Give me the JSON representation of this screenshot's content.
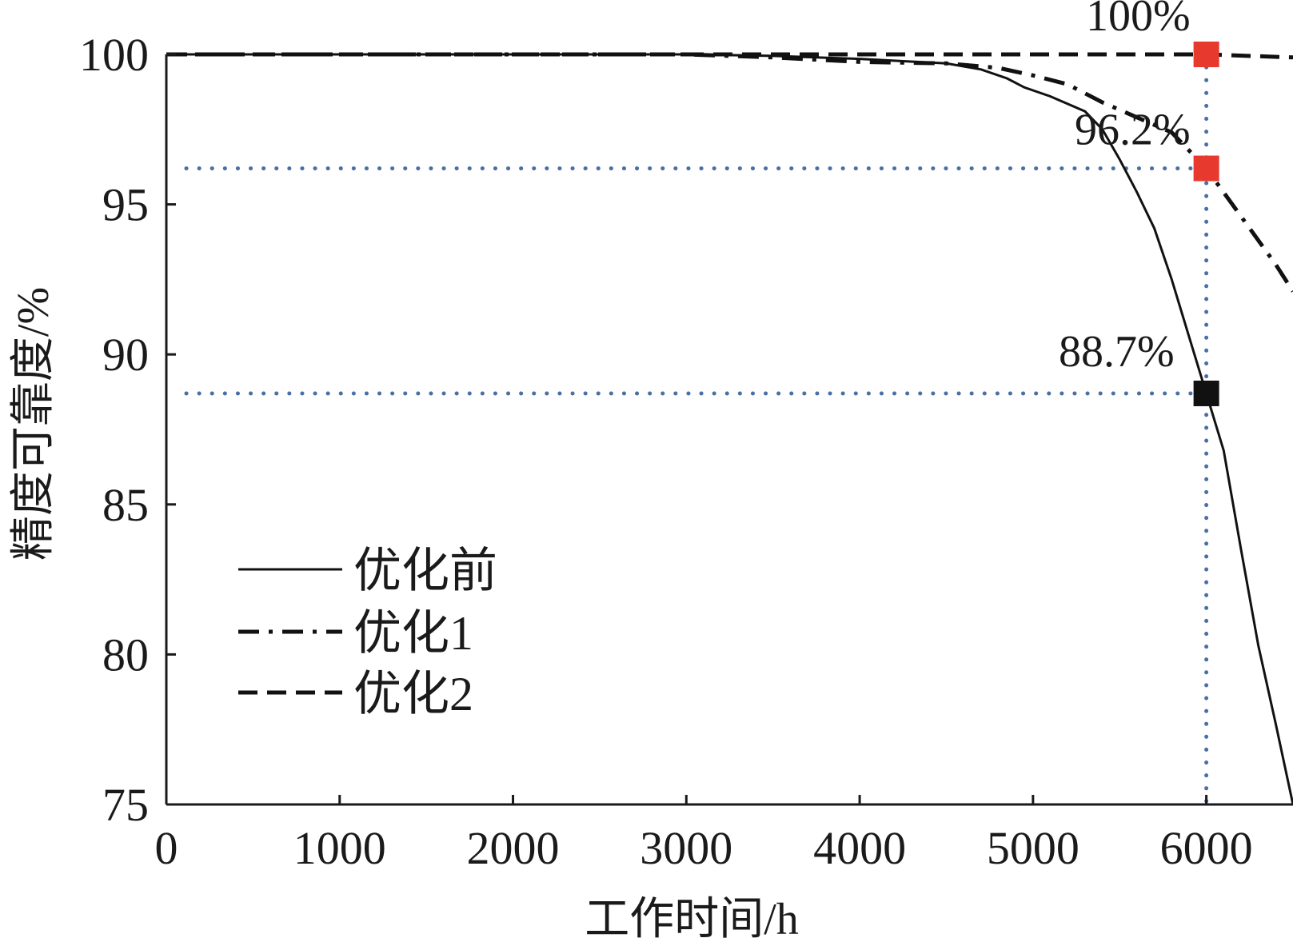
{
  "chart_data": {
    "type": "line",
    "xlabel": "工作时间/h",
    "ylabel": "精度可靠度/%",
    "xlim": [
      0,
      6500
    ],
    "ylim": [
      75,
      100
    ],
    "xticks": [
      0,
      1000,
      2000,
      3000,
      4000,
      5000,
      6000
    ],
    "yticks": [
      75,
      80,
      85,
      90,
      95,
      100
    ],
    "legend_position": "lower-left",
    "series": [
      {
        "name": "优化前",
        "style": "solid",
        "x": [
          0,
          3000,
          3500,
          4000,
          4500,
          4700,
          4850,
          4950,
          5000,
          5100,
          5300,
          5400,
          5500,
          5600,
          5700,
          5800,
          5900,
          6000,
          6100,
          6200,
          6300,
          6400,
          6500
        ],
        "y": [
          100,
          100,
          99.95,
          99.85,
          99.7,
          99.5,
          99.2,
          98.9,
          98.8,
          98.6,
          98.1,
          97.5,
          96.5,
          95.4,
          94.2,
          92.5,
          90.6,
          88.7,
          86.8,
          83.5,
          80.3,
          77.7,
          75
        ]
      },
      {
        "name": "优化1",
        "style": "dashdot",
        "x": [
          0,
          3000,
          3500,
          4000,
          4500,
          4800,
          5000,
          5200,
          5400,
          5600,
          5800,
          6000,
          6200,
          6400,
          6500
        ],
        "y": [
          100,
          100,
          99.9,
          99.75,
          99.7,
          99.55,
          99.3,
          99.0,
          98.4,
          97.9,
          97.4,
          96.2,
          94.6,
          93.0,
          92.1
        ]
      },
      {
        "name": "优化2",
        "style": "dashed",
        "x": [
          0,
          2000,
          4000,
          5000,
          6000,
          6500
        ],
        "y": [
          100,
          100,
          100,
          100,
          100,
          99.9
        ]
      }
    ],
    "markers": [
      {
        "x": 6000,
        "y": 100,
        "color": "#e8392f",
        "label": "100%"
      },
      {
        "x": 6000,
        "y": 96.2,
        "color": "#e8392f",
        "label": "96.2%"
      },
      {
        "x": 6000,
        "y": 88.7,
        "color": "#111111",
        "label": "88.7%"
      }
    ],
    "reference_lines": {
      "vertical_x": 6000,
      "horizontal_y": [
        96.2,
        88.7
      ],
      "color": "#4a6fa5"
    }
  }
}
